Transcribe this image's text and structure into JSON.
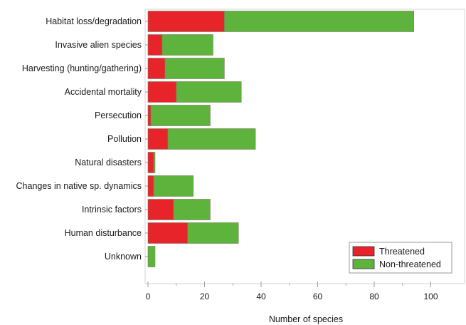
{
  "chart_data": {
    "type": "bar",
    "orientation": "horizontal",
    "stacked": true,
    "categories": [
      "Habitat loss/degradation",
      "Invasive alien species",
      "Harvesting (hunting/gathering)",
      "Accidental mortality",
      "Persecution",
      "Pollution",
      "Natural disasters",
      "Changes in native sp. dynamics",
      "Intrinsic factors",
      "Human disturbance",
      "Unknown"
    ],
    "series": [
      {
        "name": "Threatened",
        "color": "#e8242b",
        "values": [
          27,
          5,
          6,
          10,
          1,
          7,
          2,
          2,
          9,
          14,
          0
        ]
      },
      {
        "name": "Non-threatened",
        "color": "#5db33b",
        "values": [
          67,
          18,
          21,
          23,
          21,
          31,
          0.5,
          14,
          13,
          18,
          2.5
        ]
      }
    ],
    "xlabel": "Number of species",
    "ylabel": "",
    "xlim": [
      0,
      110
    ],
    "xticks": [
      0,
      20,
      40,
      60,
      80,
      100
    ],
    "legend_position": "bottom-right",
    "grid": false
  }
}
